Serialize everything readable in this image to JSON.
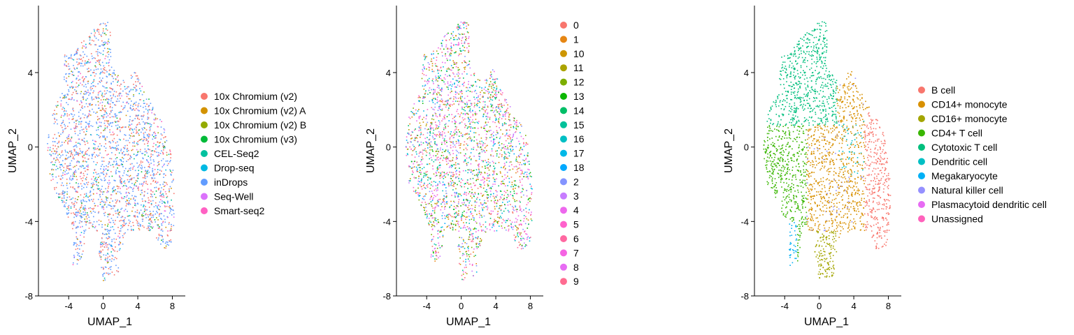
{
  "chart_data": [
    {
      "type": "scatter",
      "title": "",
      "xlabel": "UMAP_1",
      "ylabel": "UMAP_2",
      "xlim": [
        -7.5,
        9.5
      ],
      "ylim": [
        -8,
        7.6
      ],
      "xticks": [
        -4,
        0,
        4,
        8
      ],
      "xtick_labels": [
        "-4",
        "0",
        "4",
        "8"
      ],
      "yticks": [
        -8,
        -4,
        0,
        4
      ],
      "ytick_labels": [
        "-8",
        "-4",
        "0",
        "4"
      ],
      "legend_position": "right",
      "grid": false,
      "legend": [
        {
          "name": "10x Chromium (v2)",
          "color": "#F8766D"
        },
        {
          "name": "10x Chromium (v2) A",
          "color": "#D39200"
        },
        {
          "name": "10x Chromium (v2) B",
          "color": "#93AA00"
        },
        {
          "name": "10x Chromium (v3)",
          "color": "#00BA38"
        },
        {
          "name": "CEL-Seq2",
          "color": "#00C19F"
        },
        {
          "name": "Drop-seq",
          "color": "#00B9E3"
        },
        {
          "name": "inDrops",
          "color": "#619CFF"
        },
        {
          "name": "Seq-Well",
          "color": "#DB72FB"
        },
        {
          "name": "Smart-seq2",
          "color": "#FF61C3"
        }
      ]
    },
    {
      "type": "scatter",
      "title": "",
      "xlabel": "UMAP_1",
      "ylabel": "UMAP_2",
      "xlim": [
        -7.5,
        9.5
      ],
      "ylim": [
        -8,
        7.6
      ],
      "xticks": [
        -4,
        0,
        4,
        8
      ],
      "xtick_labels": [
        "-4",
        "0",
        "4",
        "8"
      ],
      "yticks": [
        -8,
        -4,
        0,
        4
      ],
      "ytick_labels": [
        "-8",
        "-4",
        "0",
        "4"
      ],
      "legend_position": "right",
      "grid": false,
      "legend": [
        {
          "name": "0",
          "color": "#F8766D"
        },
        {
          "name": "1",
          "color": "#E68613"
        },
        {
          "name": "10",
          "color": "#CD9600"
        },
        {
          "name": "11",
          "color": "#ABA300"
        },
        {
          "name": "12",
          "color": "#7CAE00"
        },
        {
          "name": "13",
          "color": "#0CB702"
        },
        {
          "name": "14",
          "color": "#00BE67"
        },
        {
          "name": "15",
          "color": "#00C19A"
        },
        {
          "name": "16",
          "color": "#00BFC4"
        },
        {
          "name": "17",
          "color": "#00B8E7"
        },
        {
          "name": "18",
          "color": "#00A9FF"
        },
        {
          "name": "2",
          "color": "#8494FF"
        },
        {
          "name": "3",
          "color": "#C77CFF"
        },
        {
          "name": "4",
          "color": "#ED68ED"
        },
        {
          "name": "5",
          "color": "#FF61CC"
        },
        {
          "name": "6",
          "color": "#FF68A1"
        },
        {
          "name": "7",
          "color": "#F564E3"
        },
        {
          "name": "8",
          "color": "#E76BF3"
        },
        {
          "name": "9",
          "color": "#FF6C91"
        }
      ]
    },
    {
      "type": "scatter",
      "title": "",
      "xlabel": "UMAP_1",
      "ylabel": "UMAP_2",
      "xlim": [
        -7.5,
        9.5
      ],
      "ylim": [
        -8,
        7.6
      ],
      "xticks": [
        -4,
        0,
        4,
        8
      ],
      "xtick_labels": [
        "-4",
        "0",
        "4",
        "8"
      ],
      "yticks": [
        -8,
        -4,
        0,
        4
      ],
      "ytick_labels": [
        "-8",
        "-4",
        "0",
        "4"
      ],
      "legend_position": "right",
      "grid": false,
      "legend": [
        {
          "name": "B cell",
          "color": "#F8766D"
        },
        {
          "name": "CD14+ monocyte",
          "color": "#D89000"
        },
        {
          "name": "CD16+ monocyte",
          "color": "#A3A500"
        },
        {
          "name": "CD4+ T cell",
          "color": "#39B600"
        },
        {
          "name": "Cytotoxic T cell",
          "color": "#00BF7D"
        },
        {
          "name": "Dendritic cell",
          "color": "#00BFC4"
        },
        {
          "name": "Megakaryocyte",
          "color": "#00B0F6"
        },
        {
          "name": "Natural killer cell",
          "color": "#9590FF"
        },
        {
          "name": "Plasmacytoid dendritic cell",
          "color": "#E76BF3"
        },
        {
          "name": "Unassigned",
          "color": "#FF62BC"
        }
      ]
    }
  ]
}
